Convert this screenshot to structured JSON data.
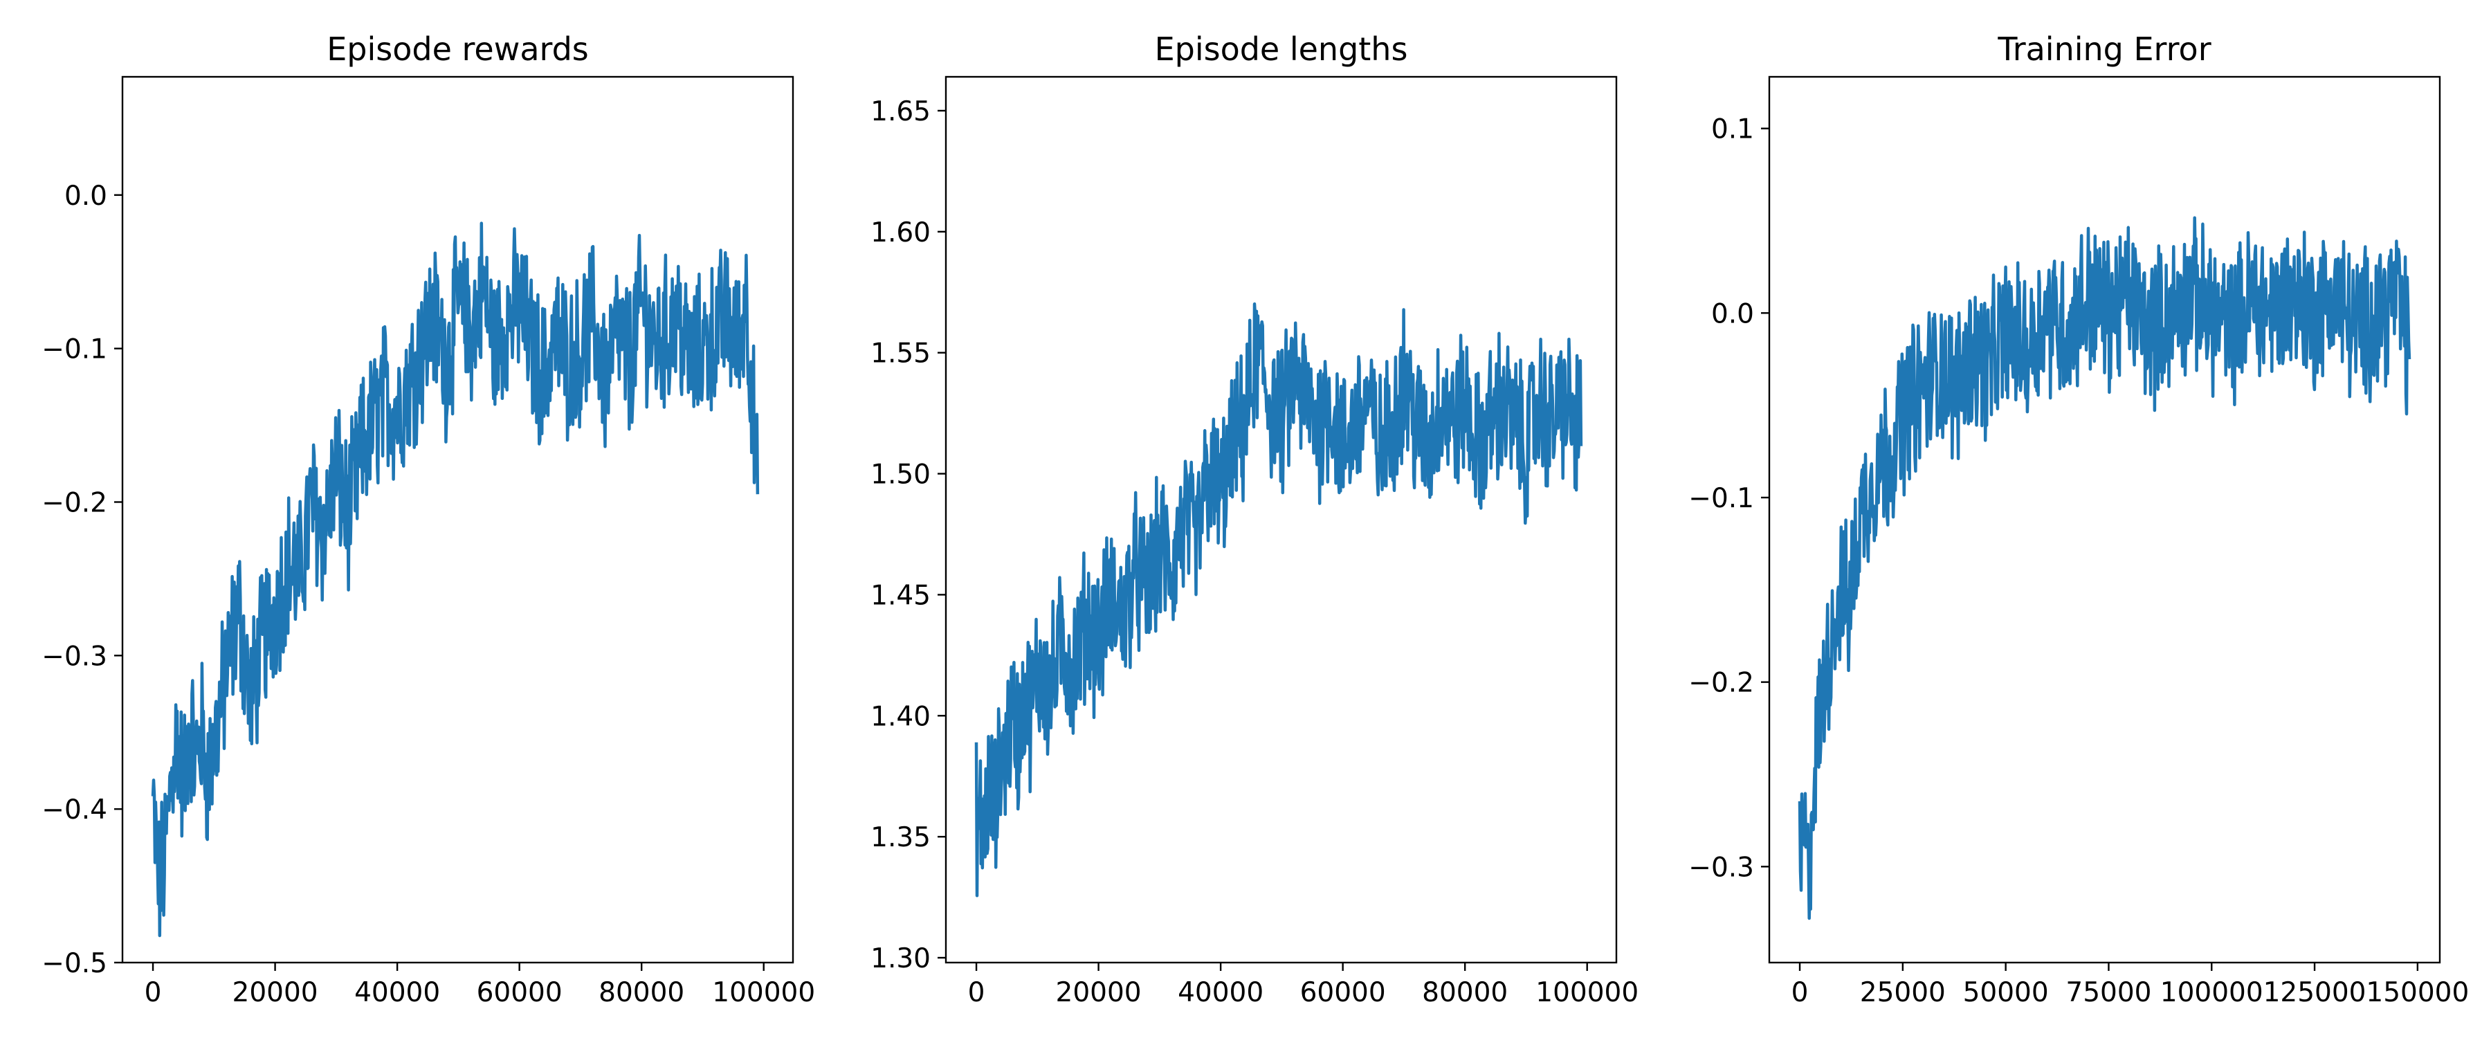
{
  "line_color": "#1f77b4",
  "chart_data": [
    {
      "type": "line",
      "title": "Episode rewards",
      "xlabel": "",
      "ylabel": "",
      "xlim": [
        -4990,
        104790
      ],
      "ylim": [
        -0.5,
        0.077
      ],
      "xticks": [
        0,
        20000,
        40000,
        60000,
        80000,
        100000
      ],
      "xtick_labels": [
        "0",
        "20000",
        "40000",
        "60000",
        "80000",
        "100000"
      ],
      "yticks": [
        -0.5,
        -0.4,
        -0.3,
        -0.2,
        -0.1,
        0.0
      ],
      "ytick_labels": [
        "−0.5",
        "−0.4",
        "−0.3",
        "−0.2",
        "−0.1",
        "0.0"
      ],
      "series": [
        {
          "name": "Episode rewards",
          "x": [
            0,
            1000,
            2000,
            3000,
            4000,
            5000,
            6000,
            7000,
            8000,
            9000,
            10000,
            12000,
            14000,
            16000,
            18000,
            20000,
            22000,
            24000,
            26000,
            28000,
            30000,
            32000,
            34000,
            36000,
            38000,
            40000,
            42000,
            44000,
            46000,
            48000,
            50000,
            52000,
            54000,
            56000,
            58000,
            60000,
            62000,
            64000,
            66000,
            68000,
            70000,
            72000,
            74000,
            76000,
            78000,
            80000,
            82000,
            84000,
            86000,
            88000,
            90000,
            92000,
            94000,
            96000,
            97000,
            98000,
            99000
          ],
          "y": [
            -0.4,
            -0.45,
            -0.43,
            -0.38,
            -0.35,
            -0.39,
            -0.34,
            -0.37,
            -0.35,
            -0.38,
            -0.36,
            -0.31,
            -0.27,
            -0.33,
            -0.29,
            -0.27,
            -0.24,
            -0.25,
            -0.2,
            -0.22,
            -0.18,
            -0.21,
            -0.17,
            -0.15,
            -0.13,
            -0.14,
            -0.12,
            -0.1,
            -0.08,
            -0.11,
            -0.07,
            -0.09,
            -0.06,
            -0.1,
            -0.08,
            -0.07,
            -0.1,
            -0.12,
            -0.09,
            -0.11,
            -0.1,
            -0.08,
            -0.12,
            -0.09,
            -0.11,
            -0.07,
            -0.1,
            -0.09,
            -0.08,
            -0.11,
            -0.1,
            -0.09,
            -0.08,
            -0.1,
            -0.06,
            -0.12,
            -0.2
          ]
        }
      ]
    },
    {
      "type": "line",
      "title": "Episode lengths",
      "xlabel": "",
      "ylabel": "",
      "xlim": [
        -4990,
        104790
      ],
      "ylim": [
        1.298,
        1.664
      ],
      "xticks": [
        0,
        20000,
        40000,
        60000,
        80000,
        100000
      ],
      "xtick_labels": [
        "0",
        "20000",
        "40000",
        "60000",
        "80000",
        "100000"
      ],
      "yticks": [
        1.3,
        1.35,
        1.4,
        1.45,
        1.5,
        1.55,
        1.6,
        1.65
      ],
      "ytick_labels": [
        "1.30",
        "1.35",
        "1.40",
        "1.45",
        "1.50",
        "1.55",
        "1.60",
        "1.65"
      ],
      "series": [
        {
          "name": "Episode lengths",
          "x": [
            0,
            1000,
            2000,
            3000,
            4000,
            5000,
            6000,
            7000,
            8000,
            9000,
            10000,
            12000,
            14000,
            16000,
            18000,
            20000,
            22000,
            24000,
            26000,
            28000,
            30000,
            32000,
            34000,
            36000,
            38000,
            40000,
            42000,
            44000,
            46000,
            48000,
            50000,
            52000,
            54000,
            56000,
            58000,
            60000,
            62000,
            64000,
            66000,
            68000,
            70000,
            72000,
            74000,
            76000,
            78000,
            80000,
            82000,
            84000,
            86000,
            88000,
            90000,
            92000,
            94000,
            96000,
            98000,
            99000
          ],
          "y": [
            1.36,
            1.35,
            1.37,
            1.36,
            1.38,
            1.39,
            1.4,
            1.39,
            1.41,
            1.4,
            1.42,
            1.41,
            1.43,
            1.42,
            1.44,
            1.43,
            1.45,
            1.44,
            1.46,
            1.45,
            1.47,
            1.46,
            1.48,
            1.47,
            1.5,
            1.49,
            1.51,
            1.52,
            1.55,
            1.53,
            1.52,
            1.54,
            1.53,
            1.52,
            1.53,
            1.51,
            1.52,
            1.53,
            1.51,
            1.52,
            1.54,
            1.52,
            1.51,
            1.53,
            1.52,
            1.53,
            1.51,
            1.52,
            1.53,
            1.52,
            1.51,
            1.53,
            1.52,
            1.53,
            1.52,
            1.52
          ]
        }
      ]
    },
    {
      "type": "line",
      "title": "Training Error",
      "xlabel": "",
      "ylabel": "",
      "xlim": [
        -7400,
        155400
      ],
      "ylim": [
        -0.352,
        0.128
      ],
      "xticks": [
        0,
        25000,
        50000,
        75000,
        100000,
        125000,
        150000
      ],
      "xtick_labels": [
        "0",
        "25000",
        "50000",
        "75000",
        "100000",
        "125000",
        "150000"
      ],
      "yticks": [
        -0.3,
        -0.2,
        -0.1,
        0.0,
        0.1
      ],
      "ytick_labels": [
        "−0.3",
        "−0.2",
        "−0.1",
        "0.0",
        "0.1"
      ],
      "series": [
        {
          "name": "Training Error",
          "x": [
            0,
            1000,
            2000,
            3000,
            4000,
            6000,
            8000,
            10000,
            12000,
            14000,
            16000,
            18000,
            20000,
            23000,
            26000,
            30000,
            34000,
            38000,
            42000,
            46000,
            50000,
            55000,
            60000,
            65000,
            70000,
            75000,
            80000,
            85000,
            90000,
            95000,
            100000,
            105000,
            110000,
            115000,
            120000,
            125000,
            130000,
            135000,
            140000,
            145000,
            148000
          ],
          "y": [
            -0.3,
            -0.28,
            -0.31,
            -0.27,
            -0.24,
            -0.2,
            -0.17,
            -0.15,
            -0.16,
            -0.12,
            -0.1,
            -0.09,
            -0.08,
            -0.07,
            -0.05,
            -0.04,
            -0.03,
            -0.04,
            -0.02,
            -0.03,
            -0.01,
            -0.02,
            0.0,
            -0.01,
            0.01,
            0.0,
            0.01,
            -0.01,
            0.0,
            0.01,
            0.0,
            -0.01,
            0.01,
            0.0,
            0.01,
            0.0,
            0.01,
            -0.01,
            0.0,
            0.01,
            -0.02
          ]
        }
      ]
    }
  ]
}
